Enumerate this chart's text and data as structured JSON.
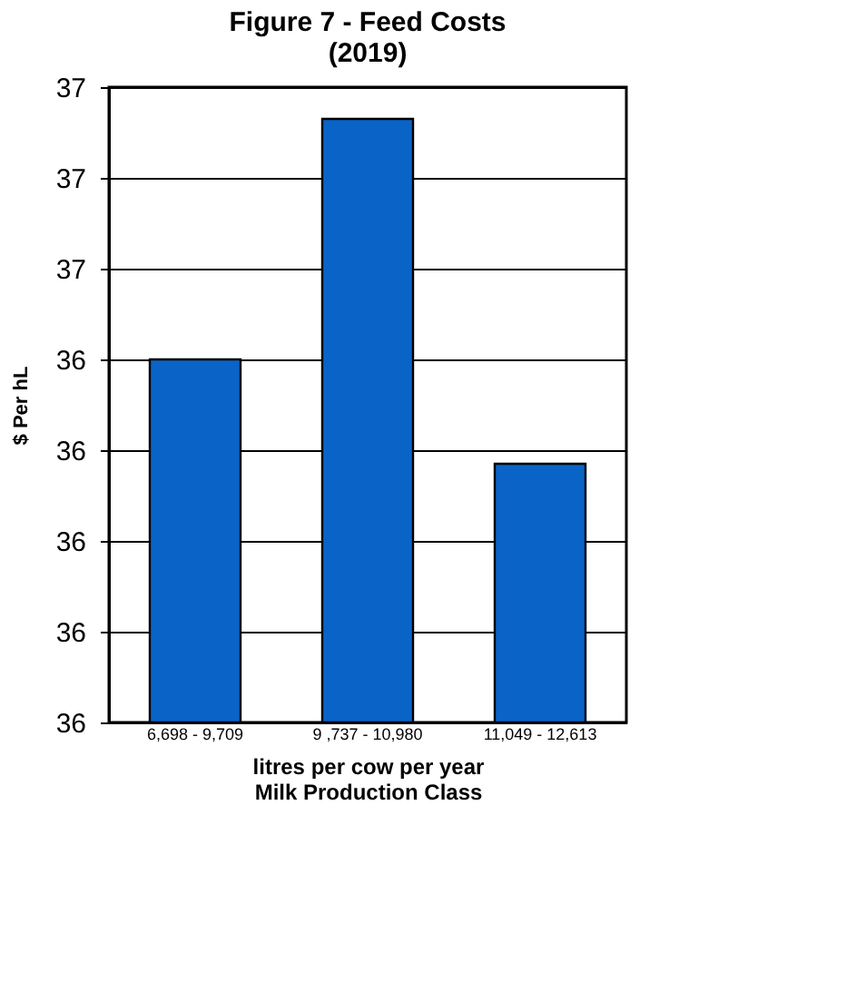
{
  "chart_data": {
    "type": "bar",
    "title": [
      "Figure 7 - Feed Costs",
      "(2019)"
    ],
    "categories": [
      "6,698 - 9,709",
      "9 ,737 - 10,980",
      "11,049 - 12,613"
    ],
    "values": [
      36.4,
      36.93,
      36.17
    ],
    "color": "#0a64c8",
    "xlabel": [
      "litres per cow per year",
      "Milk Production Class"
    ],
    "ylabel": "$ Per hL",
    "ylim": [
      35.6,
      37.0
    ],
    "yticks": [
      {
        "value": 35.6,
        "label": "36"
      },
      {
        "value": 35.8,
        "label": "36"
      },
      {
        "value": 36.0,
        "label": "36"
      },
      {
        "value": 36.2,
        "label": "36"
      },
      {
        "value": 36.4,
        "label": "36"
      },
      {
        "value": 36.6,
        "label": "37"
      },
      {
        "value": 36.8,
        "label": "37"
      },
      {
        "value": 37.0,
        "label": "37"
      }
    ],
    "grid": "y"
  }
}
